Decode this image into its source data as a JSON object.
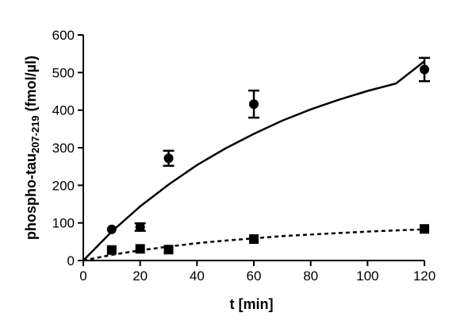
{
  "chart_data": {
    "type": "scatter",
    "xlabel": "t [min]",
    "ylabel": {
      "main": "phospho-tau",
      "subscript": "207-219",
      "unit": " (fmol/µl)"
    },
    "xlim": [
      0,
      120
    ],
    "ylim": [
      0,
      600
    ],
    "x_ticks": [
      0,
      20,
      40,
      60,
      80,
      100,
      120
    ],
    "y_ticks": [
      0,
      100,
      200,
      300,
      400,
      500,
      600
    ],
    "grid": false,
    "legend": "none",
    "series": [
      {
        "marker": "circle",
        "line_style": "solid",
        "color": "#000000",
        "points": [
          {
            "x": 10,
            "y": 83,
            "err": 0
          },
          {
            "x": 20,
            "y": 89,
            "err": 10
          },
          {
            "x": 30,
            "y": 272,
            "err": 20
          },
          {
            "x": 60,
            "y": 416,
            "err": 36
          },
          {
            "x": 120,
            "y": 508,
            "err": 31
          }
        ],
        "fit_curve": {
          "x": [
            0,
            10,
            20,
            30,
            40,
            50,
            60,
            70,
            80,
            90,
            100,
            110,
            120
          ],
          "y": [
            0,
            77,
            144,
            202,
            254,
            298,
            337,
            372,
            402,
            428,
            451,
            471,
            530
          ]
        }
      },
      {
        "marker": "square",
        "line_style": "dashed",
        "color": "#000000",
        "points": [
          {
            "x": 10,
            "y": 28,
            "err": 0
          },
          {
            "x": 20,
            "y": 31,
            "err": 0
          },
          {
            "x": 30,
            "y": 29,
            "err": 0
          },
          {
            "x": 60,
            "y": 57,
            "err": 0
          },
          {
            "x": 120,
            "y": 84,
            "err": 0
          }
        ],
        "fit_curve": {
          "x": [
            0,
            10,
            20,
            30,
            40,
            50,
            60,
            70,
            80,
            90,
            100,
            110,
            120
          ],
          "y": [
            0,
            15,
            27,
            37,
            46,
            53,
            59,
            65,
            69,
            73,
            77,
            80,
            83
          ]
        }
      }
    ]
  }
}
